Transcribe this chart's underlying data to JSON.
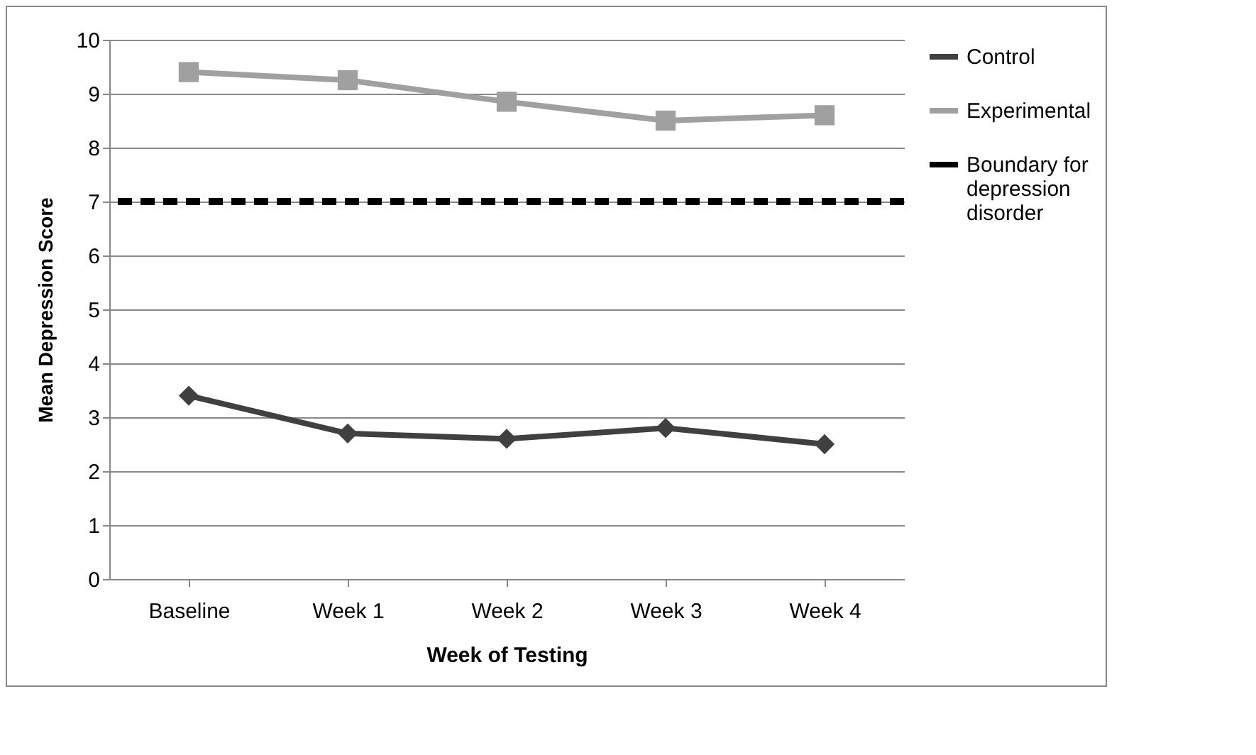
{
  "chart_data": {
    "type": "line",
    "xlabel": "Week of Testing",
    "ylabel": "Mean Depression Score",
    "categories": [
      "Baseline",
      "Week 1",
      "Week 2",
      "Week 3",
      "Week 4"
    ],
    "series": [
      {
        "name": "Control",
        "color": "#404040",
        "marker": "diamond",
        "values": [
          3.4,
          2.7,
          2.6,
          2.8,
          2.5
        ]
      },
      {
        "name": "Experimental",
        "color": "#a0a0a0",
        "marker": "square",
        "values": [
          9.4,
          9.25,
          8.85,
          8.5,
          8.6
        ]
      }
    ],
    "ref_lines": [
      {
        "axis": "y",
        "value": 7,
        "label": "Boundary for depression disorder",
        "color": "#000000",
        "line_style": "dashed"
      }
    ],
    "ylim": [
      0,
      10
    ],
    "yticks": [
      0,
      1,
      2,
      3,
      4,
      5,
      6,
      7,
      8,
      9,
      10
    ],
    "grid": "y",
    "legend": "right",
    "line_style": "solid"
  }
}
